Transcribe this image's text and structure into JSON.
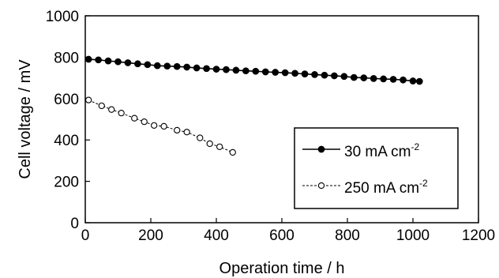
{
  "chart_data": {
    "type": "scatter",
    "xlabel": "Operation time / h",
    "ylabel": "Cell voltage / mV",
    "xlim": [
      0,
      1200
    ],
    "ylim": [
      0,
      1000
    ],
    "xticks": [
      "0",
      "200",
      "400",
      "600",
      "800",
      "1000",
      "1200"
    ],
    "yticks": [
      "0",
      "200",
      "400",
      "600",
      "800",
      "1000"
    ],
    "grid": false,
    "legend_position": "bottom-right",
    "series": [
      {
        "name": "30 mA cm",
        "name_sup": "-2",
        "marker": "filled-circle",
        "line": "solid",
        "x": [
          10,
          40,
          70,
          100,
          130,
          160,
          190,
          220,
          250,
          280,
          310,
          340,
          370,
          400,
          430,
          460,
          490,
          520,
          550,
          580,
          610,
          640,
          670,
          700,
          730,
          760,
          790,
          820,
          850,
          880,
          910,
          940,
          970,
          1000,
          1020
        ],
        "y": [
          790,
          787,
          782,
          778,
          773,
          768,
          764,
          759,
          757,
          755,
          752,
          748,
          745,
          742,
          740,
          737,
          734,
          732,
          729,
          727,
          725,
          722,
          719,
          716,
          713,
          710,
          707,
          702,
          700,
          697,
          695,
          693,
          690,
          685,
          683
        ]
      },
      {
        "name": "250 mA cm",
        "name_sup": "-2",
        "marker": "open-circle",
        "line": "dashed",
        "x": [
          10,
          50,
          80,
          110,
          150,
          180,
          210,
          240,
          280,
          310,
          350,
          380,
          410,
          450
        ],
        "y": [
          593,
          565,
          547,
          530,
          505,
          488,
          470,
          466,
          447,
          438,
          410,
          382,
          367,
          340
        ]
      }
    ]
  }
}
